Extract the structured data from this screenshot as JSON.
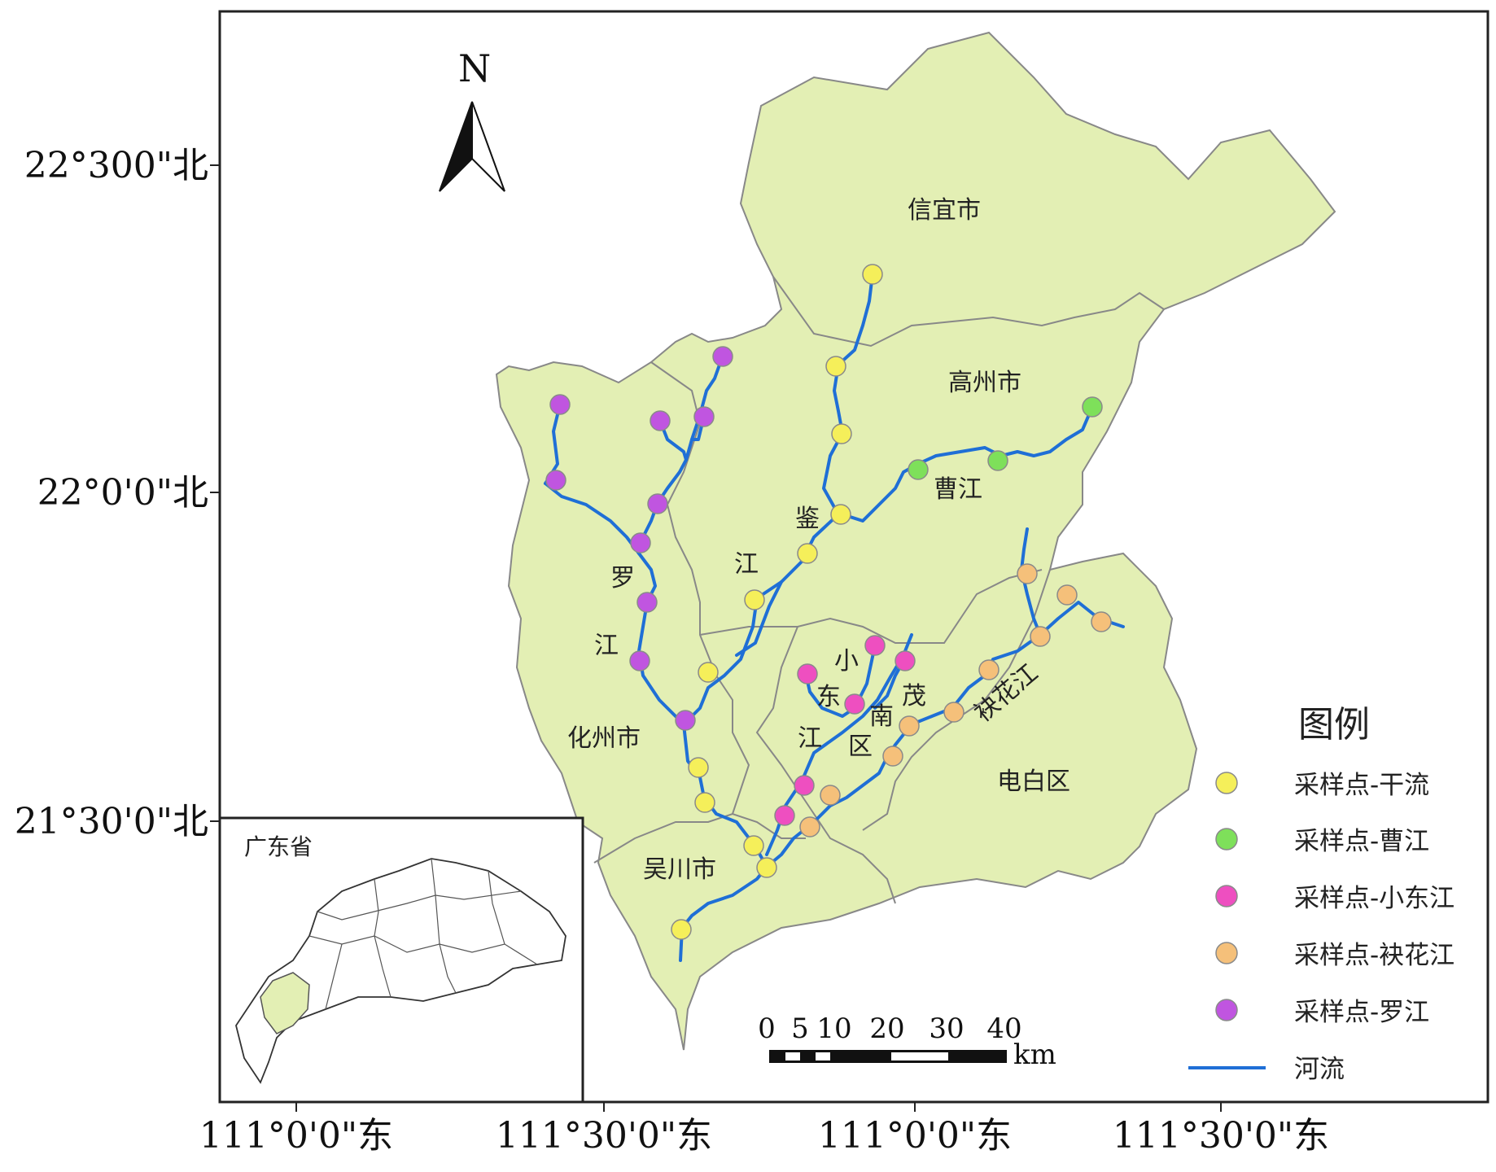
{
  "map": {
    "north_label": "N",
    "lat_ticks": [
      "22°300\"北",
      "22°0'0\"北",
      "21°30'0\"北"
    ],
    "lon_ticks": [
      "111°0'0\"东",
      "111°30'0\"东",
      "111°0'0\"东",
      "111°30'0\"东"
    ],
    "regions": {
      "xinyi": "信宜市",
      "gaozhou": "高州市",
      "huazhou": "化州市",
      "wuchuan": "吴川市",
      "dianbai": "电白区",
      "maonan": [
        "茂",
        "南",
        "区"
      ]
    },
    "rivers": {
      "jianjiang": [
        "鉴",
        "江"
      ],
      "luojiang": [
        "罗",
        "江"
      ],
      "caojiang": "曹江",
      "xiaodongjiang": [
        "小",
        "东",
        "江"
      ],
      "fuhuajiang": "袂花江"
    },
    "scale": {
      "labels": [
        "0",
        "5",
        "10",
        "20",
        "30",
        "40"
      ],
      "unit": "km"
    },
    "inset": {
      "title": "广东省"
    },
    "legend": {
      "title": "图例",
      "items": [
        {
          "label": "采样点-干流",
          "color": "#f5ef5a"
        },
        {
          "label": "采样点-曹江",
          "color": "#7ee05a"
        },
        {
          "label": "采样点-小东江",
          "color": "#ee4fc0"
        },
        {
          "label": "采样点-袂花江",
          "color": "#f5c07a"
        },
        {
          "label": "采样点-罗江",
          "color": "#c055e0"
        }
      ],
      "river_label": "河流",
      "river_color": "#1f6fd6"
    },
    "colors": {
      "land": "#e3efb4",
      "boundary": "#777777",
      "river": "#1f6fd6"
    }
  }
}
